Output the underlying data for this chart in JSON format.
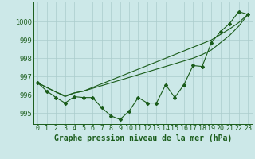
{
  "xlabel": "Graphe pression niveau de la mer (hPa)",
  "background_color": "#cce8e8",
  "grid_color": "#aacccc",
  "line_color": "#1a5c1a",
  "x_ticks": [
    0,
    1,
    2,
    3,
    4,
    5,
    6,
    7,
    8,
    9,
    10,
    11,
    12,
    13,
    14,
    15,
    16,
    17,
    18,
    19,
    20,
    21,
    22,
    23
  ],
  "x_tick_labels": [
    "0",
    "1",
    "2",
    "3",
    "4",
    "5",
    "6",
    "7",
    "8",
    "9",
    "10",
    "11",
    "12",
    "13",
    "14",
    "15",
    "16",
    "17",
    "18",
    "19",
    "20",
    "21",
    "22",
    "23"
  ],
  "ylim": [
    994.4,
    1001.1
  ],
  "xlim": [
    -0.5,
    23.5
  ],
  "yticks": [
    995,
    996,
    997,
    998,
    999,
    1000
  ],
  "data_line": [
    996.65,
    996.2,
    995.85,
    995.55,
    995.9,
    995.85,
    995.85,
    995.3,
    994.85,
    994.65,
    995.1,
    995.85,
    995.55,
    995.55,
    996.55,
    995.85,
    996.55,
    997.6,
    997.55,
    998.85,
    999.45,
    999.9,
    1000.55,
    1000.4
  ],
  "smooth_line1": [
    996.65,
    996.4,
    996.15,
    995.9,
    996.1,
    996.2,
    996.35,
    996.5,
    996.65,
    996.8,
    996.95,
    997.1,
    997.25,
    997.4,
    997.55,
    997.7,
    997.85,
    998.0,
    998.2,
    998.45,
    998.85,
    999.25,
    999.75,
    1000.4
  ],
  "smooth_line2": [
    996.65,
    996.4,
    996.15,
    995.95,
    996.1,
    996.2,
    996.4,
    996.6,
    996.8,
    997.0,
    997.2,
    997.4,
    997.6,
    997.8,
    998.0,
    998.2,
    998.4,
    998.6,
    998.8,
    999.0,
    999.3,
    999.6,
    999.95,
    1000.4
  ],
  "xlabel_fontsize": 7,
  "tick_fontsize": 6,
  "marker": "D",
  "marker_size": 2.0,
  "linewidth": 0.8
}
